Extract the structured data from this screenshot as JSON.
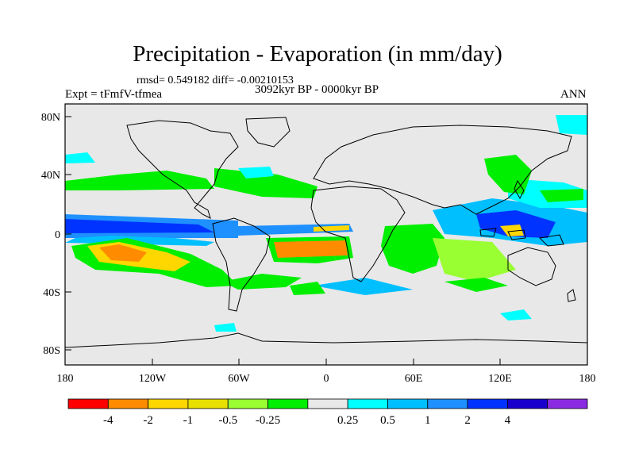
{
  "title": "Precipitation - Evaporation (in mm/day)",
  "stats": "rmsd= 0.549182 diff= -0.00210153",
  "experiment": "Expt = tFmfV-tfmea",
  "period": "3092kyr BP - 0000kyr BP",
  "season": "ANN",
  "lat_labels": [
    "80N",
    "40N",
    "0",
    "40S",
    "80S"
  ],
  "lon_labels": [
    "180",
    "120W",
    "60W",
    "0",
    "60E",
    "120E",
    "180"
  ],
  "colorbar": {
    "colors": [
      "#ff0000",
      "#ff8c00",
      "#ffd700",
      "#e8e000",
      "#99ff33",
      "#00ee00",
      "#e8e8e8",
      "#00ffff",
      "#00bfff",
      "#1e90ff",
      "#0033ff",
      "#1a00cc",
      "#8a2be2"
    ],
    "labels": [
      "-4",
      "-2",
      "-1",
      "-0.5",
      "-0.25",
      "0.25",
      "0.5",
      "1",
      "2",
      "4"
    ]
  }
}
